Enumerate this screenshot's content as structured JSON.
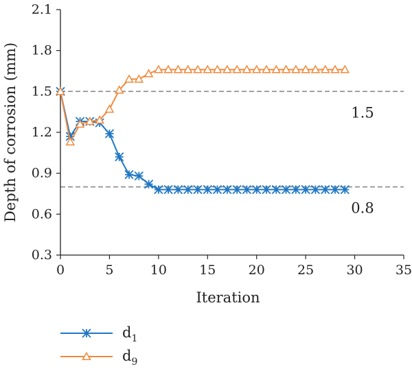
{
  "chart_data": {
    "type": "line",
    "title": "",
    "xlabel": "Iteration",
    "ylabel": "Depth of corrosion (mm)",
    "xlim": [
      0,
      35
    ],
    "ylim": [
      0.3,
      2.1
    ],
    "x_ticks": [
      "0",
      "5",
      "10",
      "15",
      "20",
      "25",
      "30",
      "35"
    ],
    "y_ticks": [
      "0.3",
      "0.6",
      "0.9",
      "1.2",
      "1.5",
      "1.8",
      "2.1"
    ],
    "grid": false,
    "legend_position": "bottom-left",
    "series": [
      {
        "name": "d",
        "subscript": "1",
        "marker": "asterisk",
        "color": "#1f77c4",
        "x": [
          0,
          1,
          2,
          3,
          4,
          5,
          6,
          7,
          8,
          9,
          10,
          11,
          12,
          13,
          14,
          15,
          16,
          17,
          18,
          19,
          20,
          21,
          22,
          23,
          24,
          25,
          26,
          27,
          28,
          29
        ],
        "values": [
          1.5,
          1.17,
          1.28,
          1.28,
          1.27,
          1.19,
          1.02,
          0.89,
          0.88,
          0.82,
          0.78,
          0.78,
          0.78,
          0.78,
          0.78,
          0.78,
          0.78,
          0.78,
          0.78,
          0.78,
          0.78,
          0.78,
          0.78,
          0.78,
          0.78,
          0.78,
          0.78,
          0.78,
          0.78,
          0.78
        ]
      },
      {
        "name": "d",
        "subscript": "9",
        "marker": "triangle",
        "color": "#f0883a",
        "x": [
          0,
          1,
          2,
          3,
          4,
          5,
          6,
          7,
          8,
          9,
          10,
          11,
          12,
          13,
          14,
          15,
          16,
          17,
          18,
          19,
          20,
          21,
          22,
          23,
          24,
          25,
          26,
          27,
          28,
          29
        ],
        "values": [
          1.5,
          1.13,
          1.26,
          1.28,
          1.29,
          1.37,
          1.51,
          1.59,
          1.59,
          1.63,
          1.66,
          1.66,
          1.66,
          1.66,
          1.66,
          1.66,
          1.66,
          1.66,
          1.66,
          1.66,
          1.66,
          1.66,
          1.66,
          1.66,
          1.66,
          1.66,
          1.66,
          1.66,
          1.66,
          1.66
        ]
      }
    ],
    "reference_lines": [
      {
        "y": 1.5,
        "label": "1.5",
        "color": "#888888"
      },
      {
        "y": 0.8,
        "label": "0.8",
        "color": "#888888"
      }
    ]
  }
}
